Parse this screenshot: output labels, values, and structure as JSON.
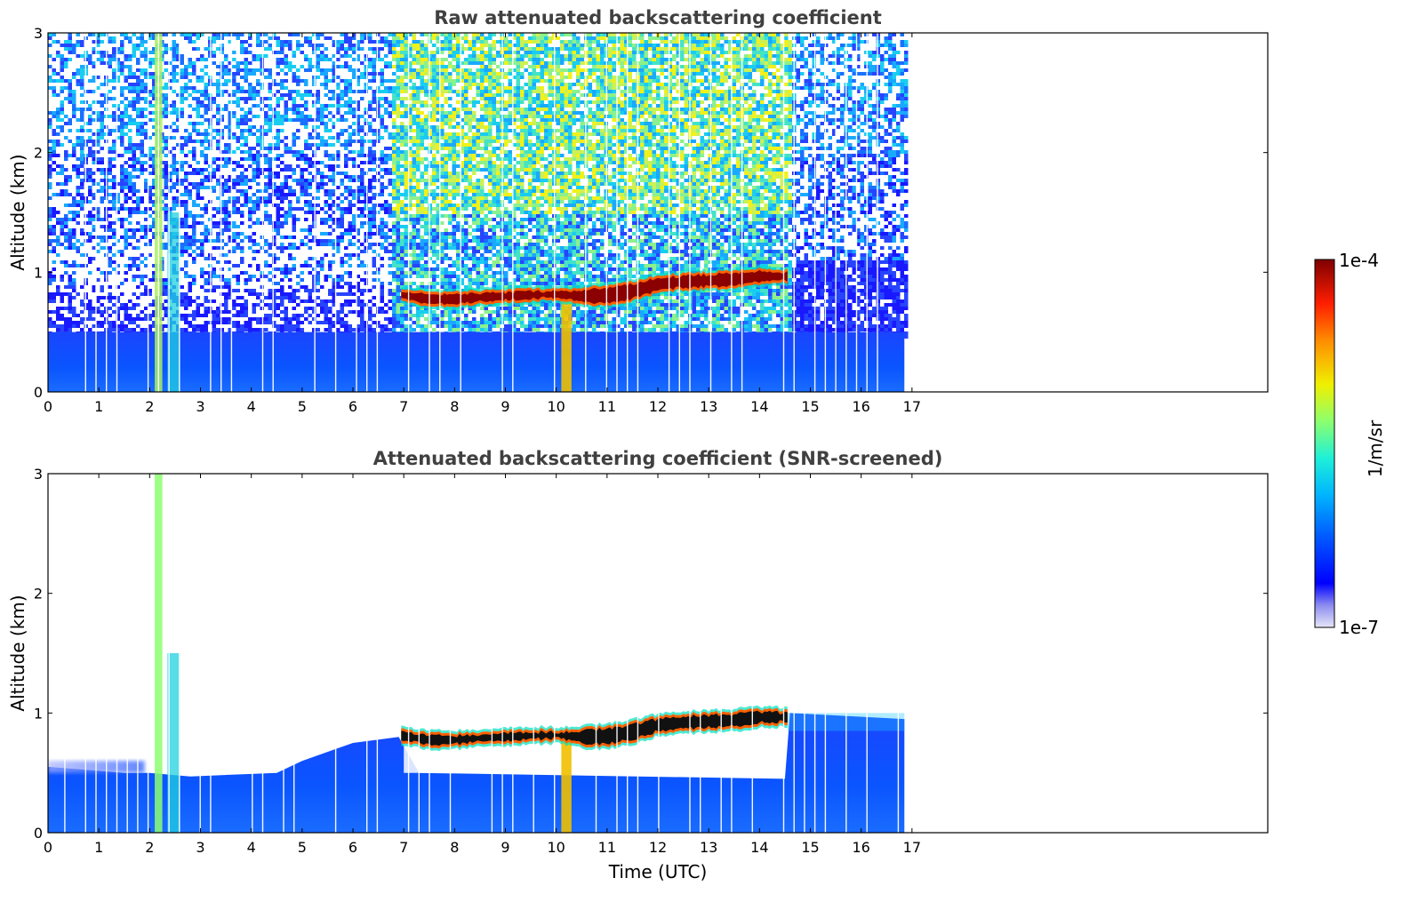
{
  "chart_data": [
    {
      "type": "heatmap",
      "title": "Raw attenuated backscattering coefficient",
      "xlabel": "",
      "ylabel": "Altitude (km)",
      "xlim": [
        0,
        24
      ],
      "ylim": [
        0,
        3
      ],
      "x_ticks": [
        "0",
        "1",
        "2",
        "3",
        "4",
        "5",
        "6",
        "7",
        "8",
        "9",
        "10",
        "11",
        "12",
        "13",
        "14",
        "15",
        "16",
        "17"
      ],
      "y_ticks": [
        "0",
        "1",
        "2",
        "3"
      ],
      "data_end_time": 16.85,
      "cloud_layer": {
        "start_time": 6.95,
        "end_time": 14.55,
        "base_km": [
          [
            6.95,
            0.78
          ],
          [
            7.5,
            0.73
          ],
          [
            8.0,
            0.74
          ],
          [
            8.5,
            0.76
          ],
          [
            9.0,
            0.77
          ],
          [
            9.5,
            0.78
          ],
          [
            10.0,
            0.79
          ],
          [
            10.5,
            0.75
          ],
          [
            11.0,
            0.74
          ],
          [
            11.5,
            0.78
          ],
          [
            12.0,
            0.85
          ],
          [
            12.5,
            0.87
          ],
          [
            13.0,
            0.88
          ],
          [
            13.5,
            0.89
          ],
          [
            14.0,
            0.92
          ],
          [
            14.55,
            0.93
          ]
        ],
        "top_km": [
          [
            6.95,
            0.84
          ],
          [
            7.5,
            0.82
          ],
          [
            8.0,
            0.81
          ],
          [
            8.5,
            0.82
          ],
          [
            9.0,
            0.83
          ],
          [
            9.5,
            0.84
          ],
          [
            10.0,
            0.84
          ],
          [
            10.5,
            0.85
          ],
          [
            11.0,
            0.87
          ],
          [
            11.5,
            0.9
          ],
          [
            12.0,
            0.95
          ],
          [
            12.5,
            0.97
          ],
          [
            13.0,
            0.98
          ],
          [
            13.5,
            0.99
          ],
          [
            14.0,
            1.01
          ],
          [
            14.55,
            1.0
          ]
        ]
      },
      "boundary_layer_top_km": 0.5
    },
    {
      "type": "heatmap",
      "title": "Attenuated backscattering coefficient (SNR-screened)",
      "xlabel": "Time (UTC)",
      "ylabel": "Altitude (km)",
      "xlim": [
        0,
        24
      ],
      "ylim": [
        0,
        3
      ],
      "x_ticks": [
        "0",
        "1",
        "2",
        "3",
        "4",
        "5",
        "6",
        "7",
        "8",
        "9",
        "10",
        "11",
        "12",
        "13",
        "14",
        "15",
        "16",
        "17"
      ],
      "y_ticks": [
        "0",
        "1",
        "2",
        "3"
      ],
      "data_end_time": 16.85
    }
  ],
  "colorbar": {
    "label": "1/m/sr",
    "max_label": "1e-4",
    "min_label": "1e-7",
    "scale": "log",
    "range": [
      1e-07,
      0.0001
    ]
  }
}
